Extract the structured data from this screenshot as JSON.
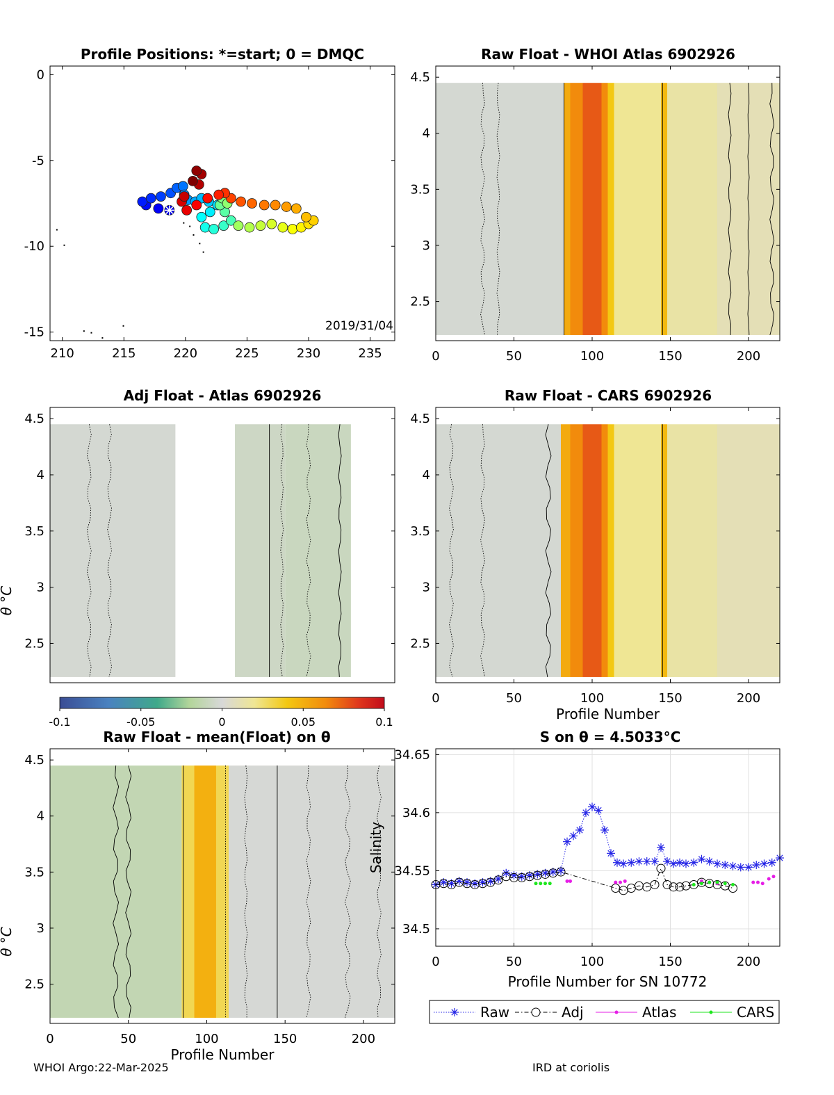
{
  "footer": {
    "left": "WHOI Argo:22-Mar-2025",
    "right": "IRD at coriolis"
  },
  "colorbar": {
    "ticks": [
      "-0.1",
      "-0.05",
      "0",
      "0.05",
      "0.1"
    ],
    "range": [
      -0.1,
      0.1
    ]
  },
  "chart_data": [
    {
      "type": "scatter",
      "id": "positions",
      "title": "Profile Positions: *=start; 0 = DMQC",
      "xlim": [
        209,
        237
      ],
      "ylim": [
        -15.5,
        0.5
      ],
      "xticks": [
        210,
        215,
        220,
        225,
        230,
        235
      ],
      "yticks": [
        0,
        -5,
        -10,
        -15
      ],
      "ytick_labels": [
        "0",
        "-5",
        "-10",
        "-15"
      ],
      "annotation": "2019/31/04",
      "start": [
        218.7,
        -7.9
      ],
      "track": [
        [
          218.7,
          -7.9
        ],
        [
          217.8,
          -7.8
        ],
        [
          216.8,
          -7.6
        ],
        [
          216.5,
          -7.4
        ],
        [
          217.2,
          -7.2
        ],
        [
          218.0,
          -7.1
        ],
        [
          218.8,
          -6.9
        ],
        [
          219.3,
          -6.6
        ],
        [
          219.8,
          -6.5
        ],
        [
          219.9,
          -7.0
        ],
        [
          220.2,
          -7.3
        ],
        [
          220.8,
          -7.4
        ],
        [
          221.3,
          -7.2
        ],
        [
          221.9,
          -7.4
        ],
        [
          222.6,
          -7.6
        ],
        [
          222.0,
          -8.0
        ],
        [
          221.3,
          -8.3
        ],
        [
          221.6,
          -8.9
        ],
        [
          222.3,
          -9.0
        ],
        [
          223.1,
          -8.8
        ],
        [
          223.7,
          -8.5
        ],
        [
          223.2,
          -8.0
        ],
        [
          222.8,
          -7.6
        ],
        [
          223.0,
          -7.2
        ],
        [
          223.4,
          -7.5
        ],
        [
          224.3,
          -8.8
        ],
        [
          225.2,
          -8.9
        ],
        [
          226.1,
          -8.8
        ],
        [
          227.0,
          -8.7
        ],
        [
          227.9,
          -8.9
        ],
        [
          228.7,
          -9.0
        ],
        [
          229.4,
          -8.9
        ],
        [
          230.0,
          -8.7
        ],
        [
          230.4,
          -8.5
        ],
        [
          229.8,
          -8.3
        ],
        [
          229.0,
          -7.8
        ],
        [
          228.2,
          -7.7
        ],
        [
          227.3,
          -7.6
        ],
        [
          226.4,
          -7.6
        ],
        [
          225.4,
          -7.5
        ],
        [
          224.5,
          -7.4
        ],
        [
          223.7,
          -7.2
        ],
        [
          223.2,
          -6.9
        ],
        [
          222.7,
          -7.0
        ],
        [
          221.8,
          -7.2
        ],
        [
          220.9,
          -7.6
        ],
        [
          220.1,
          -7.9
        ],
        [
          219.7,
          -7.4
        ],
        [
          219.9,
          -7.1
        ],
        [
          221.1,
          -6.4
        ],
        [
          221.3,
          -5.8
        ],
        [
          220.9,
          -5.6
        ],
        [
          220.6,
          -6.2
        ]
      ],
      "coast_points": [
        [
          209.5,
          -9.0
        ],
        [
          210.1,
          -9.9
        ],
        [
          211.7,
          -14.9
        ],
        [
          212.3,
          -15.0
        ],
        [
          213.2,
          -15.3
        ],
        [
          214.9,
          -14.6
        ],
        [
          220.6,
          -9.3
        ],
        [
          221.1,
          -9.8
        ],
        [
          221.4,
          -10.3
        ],
        [
          219.8,
          -8.6
        ],
        [
          220.3,
          -8.8
        ]
      ]
    },
    {
      "type": "heatmap",
      "id": "raw_whoi",
      "title": "Raw Float - WHOI Atlas  6902926",
      "xlim": [
        0,
        220
      ],
      "ylim": [
        2.15,
        4.6
      ],
      "xticks": [
        0,
        50,
        100,
        150,
        200
      ],
      "yticks": [
        2.5,
        3,
        3.5,
        4,
        4.5
      ],
      "ytick_labels": [
        "2.5",
        "3",
        "3.5",
        "4",
        "4.5"
      ],
      "xlabel": "",
      "ylabel": "",
      "bands": [
        [
          0,
          82,
          -0.002
        ],
        [
          82,
          86,
          0.05
        ],
        [
          86,
          94,
          0.06
        ],
        [
          94,
          106,
          0.072
        ],
        [
          106,
          110,
          0.06
        ],
        [
          110,
          114,
          0.04
        ],
        [
          114,
          144,
          0.02
        ],
        [
          144,
          148,
          0.045
        ],
        [
          148,
          180,
          0.015
        ],
        [
          180,
          220,
          0.01
        ]
      ]
    },
    {
      "type": "heatmap",
      "id": "adj_atlas",
      "title": "Adj Float - Atlas  6902926",
      "xlim": [
        0,
        220
      ],
      "ylim": [
        2.15,
        4.6
      ],
      "xticks": [],
      "yticks": [
        2.5,
        3,
        3.5,
        4,
        4.5
      ],
      "ytick_labels": [
        "2.5",
        "3",
        "3.5",
        "4",
        "4.5"
      ],
      "xlabel": "",
      "ylabel": "θ °C",
      "bands": [
        [
          0,
          80,
          -0.002
        ],
        [
          118,
          150,
          -0.006
        ],
        [
          150,
          192,
          -0.008
        ]
      ]
    },
    {
      "type": "heatmap",
      "id": "raw_cars",
      "title": "Raw Float - CARS  6902926",
      "xlim": [
        0,
        220
      ],
      "ylim": [
        2.15,
        4.6
      ],
      "xticks": [
        0,
        50,
        100,
        150,
        200
      ],
      "yticks": [
        2.5,
        3,
        3.5,
        4,
        4.5
      ],
      "ytick_labels": [
        "2.5",
        "3",
        "3.5",
        "4",
        "4.5"
      ],
      "xlabel": "Profile Number",
      "ylabel": "",
      "bands": [
        [
          0,
          80,
          -0.002
        ],
        [
          80,
          86,
          0.05
        ],
        [
          86,
          94,
          0.06
        ],
        [
          94,
          106,
          0.072
        ],
        [
          106,
          110,
          0.06
        ],
        [
          110,
          114,
          0.04
        ],
        [
          114,
          144,
          0.02
        ],
        [
          144,
          148,
          0.045
        ],
        [
          148,
          180,
          0.015
        ],
        [
          180,
          220,
          0.01
        ]
      ]
    },
    {
      "type": "heatmap",
      "id": "raw_mean",
      "title": "Raw Float - mean(Float) on θ",
      "xlim": [
        0,
        220
      ],
      "ylim": [
        2.15,
        4.6
      ],
      "xticks": [
        0,
        50,
        100,
        150,
        200
      ],
      "yticks": [
        2.5,
        3,
        3.5,
        4,
        4.5
      ],
      "ytick_labels": [
        "2.5",
        "3",
        "3.5",
        "4",
        "4.5"
      ],
      "xlabel": "Profile Number",
      "ylabel": "θ °C",
      "bands": [
        [
          0,
          84,
          -0.012
        ],
        [
          84,
          92,
          0.03
        ],
        [
          92,
          106,
          0.048
        ],
        [
          106,
          114,
          0.03
        ],
        [
          114,
          220,
          -0.001
        ]
      ]
    },
    {
      "type": "line",
      "id": "salinity",
      "title": "S on θ = 4.5033°C",
      "xlim": [
        0,
        220
      ],
      "ylim": [
        34.485,
        34.655
      ],
      "xticks": [
        0,
        50,
        100,
        150,
        200
      ],
      "yticks": [
        34.5,
        34.55,
        34.6,
        34.65
      ],
      "ytick_labels": [
        "34.5",
        "34.55",
        "34.6",
        "34.65"
      ],
      "xlabel": "Profile Number for SN 10772",
      "ylabel": "Salinity",
      "legend": [
        "Raw",
        "Adj",
        "Atlas",
        "CARS"
      ],
      "series": [
        {
          "name": "Raw",
          "x": [
            0,
            5,
            10,
            15,
            20,
            25,
            30,
            35,
            40,
            45,
            50,
            55,
            60,
            65,
            70,
            75,
            80,
            84,
            88,
            92,
            96,
            100,
            104,
            108,
            112,
            116,
            120,
            125,
            130,
            135,
            140,
            144,
            148,
            152,
            156,
            160,
            165,
            170,
            175,
            180,
            185,
            190,
            195,
            200,
            205,
            210,
            215,
            220
          ],
          "y": [
            34.538,
            34.54,
            34.539,
            34.541,
            34.54,
            34.539,
            34.54,
            34.541,
            34.543,
            34.548,
            34.546,
            34.545,
            34.546,
            34.547,
            34.548,
            34.549,
            34.55,
            34.575,
            34.58,
            34.585,
            34.6,
            34.605,
            34.602,
            34.585,
            34.565,
            34.557,
            34.556,
            34.557,
            34.558,
            34.558,
            34.558,
            34.57,
            34.558,
            34.556,
            34.557,
            34.556,
            34.557,
            34.56,
            34.558,
            34.556,
            34.555,
            34.554,
            34.553,
            34.553,
            34.555,
            34.556,
            34.557,
            34.561
          ]
        },
        {
          "name": "Adj",
          "x": [
            0,
            5,
            10,
            15,
            20,
            25,
            30,
            35,
            40,
            45,
            50,
            55,
            60,
            65,
            70,
            75,
            80,
            115,
            120,
            125,
            130,
            135,
            140,
            144,
            148,
            152,
            156,
            160,
            165,
            170,
            175,
            180,
            185,
            190
          ],
          "y": [
            34.538,
            34.539,
            34.538,
            34.54,
            34.539,
            34.538,
            34.539,
            34.54,
            34.542,
            34.545,
            34.544,
            34.544,
            34.545,
            34.546,
            34.547,
            34.548,
            34.549,
            34.535,
            34.533,
            34.535,
            34.537,
            34.536,
            34.538,
            34.552,
            34.538,
            34.536,
            34.536,
            34.537,
            34.538,
            34.54,
            34.539,
            34.538,
            34.537,
            34.535
          ]
        },
        {
          "name": "Atlas",
          "x": [
            84,
            86,
            115,
            118,
            121,
            170,
            175,
            180,
            203,
            206,
            209,
            213,
            216
          ],
          "y": [
            34.541,
            34.541,
            34.54,
            34.54,
            34.541,
            34.541,
            34.54,
            34.539,
            34.54,
            34.54,
            34.539,
            34.543,
            34.545
          ]
        },
        {
          "name": "CARS",
          "x": [
            64,
            67,
            70,
            73,
            165,
            170,
            175,
            180,
            185,
            190
          ],
          "y": [
            34.539,
            34.539,
            34.539,
            34.539,
            34.538,
            34.539,
            34.54,
            34.54,
            34.539,
            34.538
          ]
        }
      ]
    }
  ]
}
